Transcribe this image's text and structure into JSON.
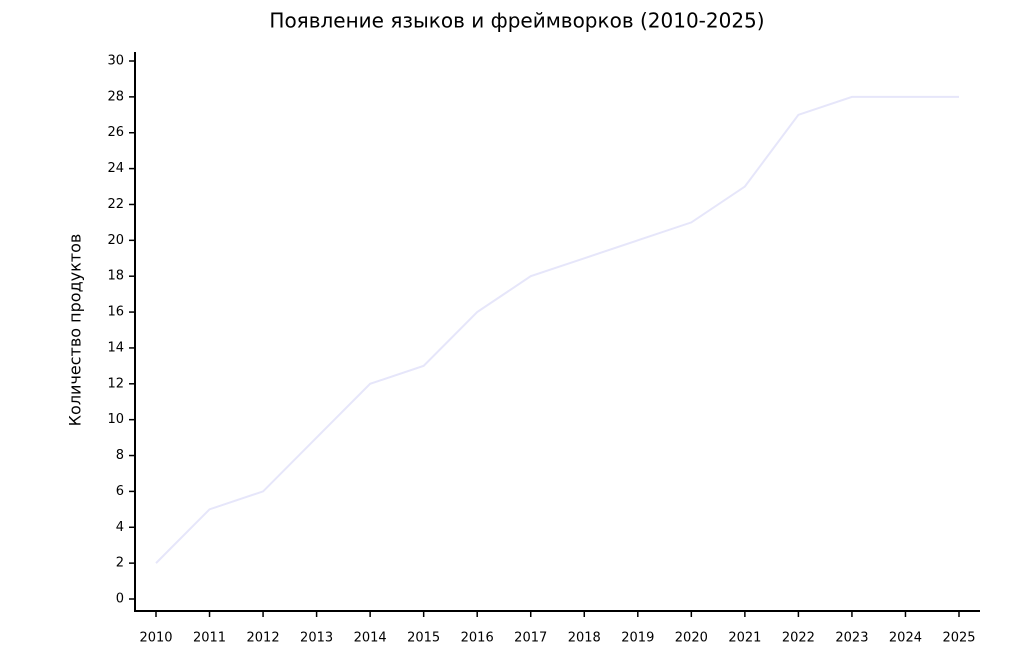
{
  "chart_data": {
    "type": "line",
    "title": "Появление языков и фреймворков (2010-2025)",
    "y_label": "Количество продуктов",
    "categories": [
      "2010",
      "2011",
      "2012",
      "2013",
      "2014",
      "2015",
      "2016",
      "2017",
      "2018",
      "2019",
      "2020",
      "2021",
      "2022",
      "2023",
      "2024",
      "2025"
    ],
    "values": [
      2,
      5,
      6,
      9,
      12,
      13,
      16,
      18,
      19,
      20,
      21,
      23,
      27,
      28,
      28,
      28
    ],
    "color": "#e6e6fa",
    "ylim": [
      0,
      30
    ],
    "yticks": [
      0,
      2,
      4,
      6,
      8,
      10,
      12,
      14,
      16,
      18,
      20,
      22,
      24,
      26,
      28,
      30
    ]
  }
}
